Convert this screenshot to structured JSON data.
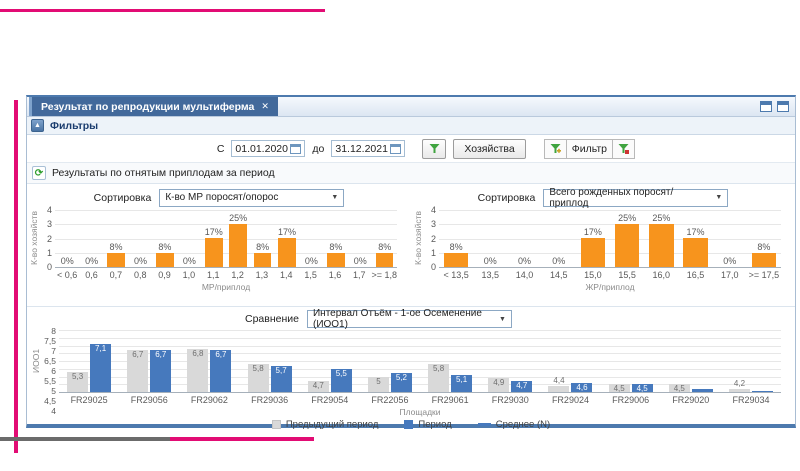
{
  "colors": {
    "accent": "#4D7AAE",
    "magenta": "#E20C74",
    "markgray": "#6B6B6B",
    "funnelgreen": "#3FA43F",
    "orange": "#F7941D",
    "blue": "#4679BD",
    "graybar": "#D9D9D9"
  },
  "icons": {
    "close_icon": "✕",
    "collapse_icon": "▲",
    "refresh_icon": "⟳",
    "dropdown_arrow": "▼"
  },
  "tab": {
    "title": "Результат по репродукции мультиферма"
  },
  "filters": {
    "header_label": "Фильтры",
    "from_label": "С",
    "from_value": "01.01.2020",
    "to_label": "до",
    "to_value": "31.12.2021",
    "farms_button_label": "Хозяйства",
    "filter_button_label": "Фильтр"
  },
  "section_title": "Результаты по отнятым приплодам за период",
  "sort_label": "Сортировка",
  "compare_label": "Сравнение",
  "chart_data": [
    {
      "id": "mr_per_litter",
      "type": "bar",
      "sort_value": "К-во МР поросят/опорос",
      "categories": [
        "< 0,6",
        "0,6",
        "0,7",
        "0,8",
        "0,9",
        "1,0",
        "1,1",
        "1,2",
        "1,3",
        "1,4",
        "1,5",
        "1,6",
        "1,7",
        ">= 1,8"
      ],
      "values": [
        0,
        0,
        1,
        0,
        1,
        0,
        2,
        3,
        1,
        2,
        0,
        1,
        0,
        1
      ],
      "bar_labels": [
        "0%",
        "0%",
        "8%",
        "0%",
        "8%",
        "0%",
        "17%",
        "25%",
        "8%",
        "17%",
        "0%",
        "8%",
        "0%",
        "8%"
      ],
      "xlabel": "МР/приплод",
      "ylabel": "К-во хозяйств",
      "ylim": [
        0,
        4
      ],
      "yticks": [
        0,
        1,
        2,
        3,
        4
      ],
      "grid": true,
      "bar_color": "#F7941D"
    },
    {
      "id": "total_born_per_litter",
      "type": "bar",
      "sort_value": "Всего рожденных поросят/приплод",
      "categories": [
        "< 13,5",
        "13,5",
        "14,0",
        "14,5",
        "15,0",
        "15,5",
        "16,0",
        "16,5",
        "17,0",
        ">= 17,5"
      ],
      "values": [
        1,
        0,
        0,
        0,
        2,
        3,
        3,
        2,
        0,
        1
      ],
      "bar_labels": [
        "8%",
        "0%",
        "0%",
        "0%",
        "17%",
        "25%",
        "25%",
        "17%",
        "0%",
        "8%"
      ],
      "xlabel": "ЖР/приплод",
      "ylabel": "К-во хозяйств",
      "ylim": [
        0,
        4
      ],
      "yticks": [
        0,
        1,
        2,
        3,
        4
      ],
      "grid": true,
      "bar_color": "#F7941D"
    },
    {
      "id": "ioo1_comparison",
      "type": "grouped_bar",
      "compare_value": "Интервал Отъём - 1-ое Осеменение (ИОО1)",
      "categories": [
        "FR29025",
        "FR29056",
        "FR29062",
        "FR29036",
        "FR29054",
        "FR22056",
        "FR29061",
        "FR29030",
        "FR29024",
        "FR29006",
        "FR29020",
        "FR29034"
      ],
      "series": [
        {
          "name": "Предыдущий период",
          "color": "#D9D9D9",
          "label_color": "#6E6E6E",
          "values": [
            5.3,
            6.7,
            6.8,
            5.8,
            4.7,
            5,
            5.8,
            4.9,
            4.4,
            4.5,
            4.5,
            4.2
          ],
          "labels": [
            "5,3",
            "6,7",
            "6,8",
            "5,8",
            "4,7",
            "5",
            "5,8",
            "4,9",
            "4,4",
            "4,5",
            "4,5",
            "4,2"
          ]
        },
        {
          "name": "Период",
          "color": "#4679BD",
          "label_color": "#FFFFFF",
          "values": [
            7.1,
            6.7,
            6.7,
            5.7,
            5.5,
            5.2,
            5.1,
            4.7,
            4.6,
            4.5,
            4.2,
            4.05
          ],
          "labels": [
            "7,1",
            "6,7",
            "6,7",
            "5,7",
            "5,5",
            "5,2",
            "5,1",
            "4,7",
            "4,6",
            "4,5",
            "",
            ""
          ]
        }
      ],
      "legend": [
        {
          "label": "Предыдущий период",
          "swatch": "square",
          "color": "#D9D9D9"
        },
        {
          "label": "Период",
          "swatch": "square",
          "color": "#4679BD"
        },
        {
          "label": "Среднее (N)",
          "swatch": "line",
          "color": "#4679BD"
        }
      ],
      "xlabel": "Площадки",
      "ylabel": "ИОО1",
      "ylim": [
        4,
        8
      ],
      "ytick_step": 0.5,
      "ytick_labels": [
        "8",
        "7,5",
        "7",
        "6,5",
        "6",
        "5,5",
        "5",
        "4,5",
        "4"
      ],
      "grid": true,
      "legend_position": "bottom"
    }
  ]
}
